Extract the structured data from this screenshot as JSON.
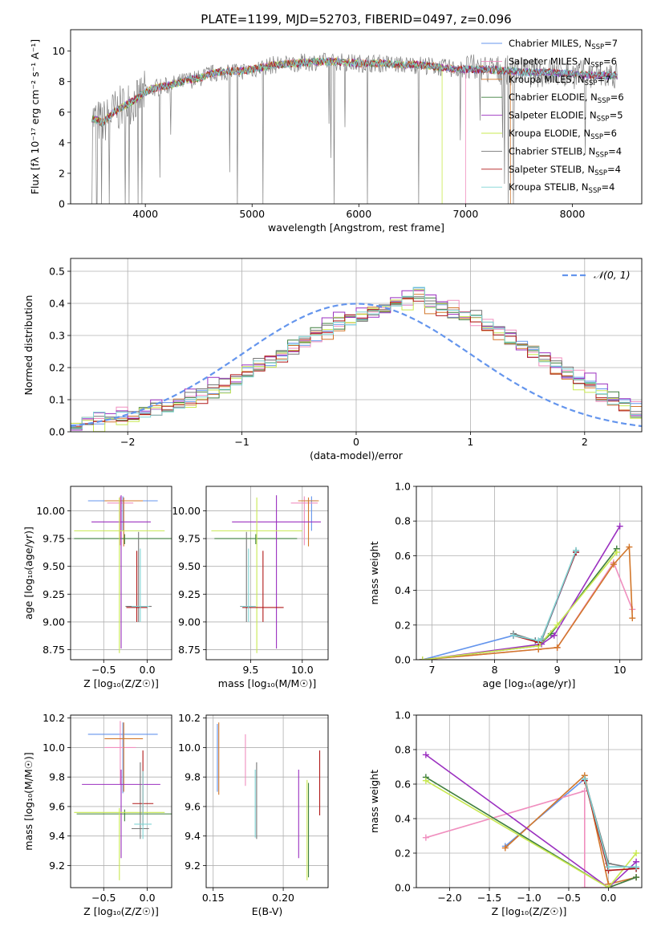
{
  "figure_title": "PLATE=1199, MJD=52703, FIBERID=0497, z=0.096",
  "colors": {
    "chabrier_miles": "#6495ed",
    "salpeter_miles": "#f08fbf",
    "kroupa_miles": "#d2772b",
    "chabrier_elodie": "#3f7f3f",
    "salpeter_elodie": "#9b30c0",
    "kroupa_elodie": "#c8e850",
    "chabrier_stelib": "#777777",
    "salpeter_stelib": "#b01818",
    "kroupa_stelib": "#7fd4d4",
    "data": "#808080",
    "normal": "#6495ed",
    "grid": "#b0b0b0"
  },
  "chart_data": [
    {
      "id": "spectrum",
      "type": "line",
      "title": "PLATE=1199, MJD=52703, FIBERID=0497, z=0.096",
      "xlabel": "wavelength [Angstrom, rest frame]",
      "ylabel": "Flux [fλ 10⁻¹⁷ erg cm⁻² s⁻¹ A⁻¹]",
      "xlim": [
        3300,
        8650
      ],
      "ylim": [
        0,
        11.4
      ],
      "xticks": [
        4000,
        5000,
        6000,
        7000,
        8000
      ],
      "yticks": [
        0,
        2,
        4,
        6,
        8,
        10
      ],
      "grid": false,
      "legend_position": "upper-right",
      "legend": [
        {
          "label": "Chabrier MILES, N",
          "sub": "SSP",
          "tail": "=7",
          "color": "#6495ed"
        },
        {
          "label": "Salpeter MILES, N",
          "sub": "SSP",
          "tail": "=6",
          "color": "#f08fbf"
        },
        {
          "label": "Kroupa MILES, N",
          "sub": "SSP",
          "tail": "=7",
          "color": "#d2772b"
        },
        {
          "label": "Chabrier ELODIE, N",
          "sub": "SSP",
          "tail": "=6",
          "color": "#3f7f3f"
        },
        {
          "label": "Salpeter ELODIE, N",
          "sub": "SSP",
          "tail": "=5",
          "color": "#9b30c0"
        },
        {
          "label": "Kroupa ELODIE, N",
          "sub": "SSP",
          "tail": "=6",
          "color": "#c8e850"
        },
        {
          "label": "Chabrier STELIB, N",
          "sub": "SSP",
          "tail": "=4",
          "color": "#777777"
        },
        {
          "label": "Salpeter STELIB, N",
          "sub": "SSP",
          "tail": "=4",
          "color": "#b01818"
        },
        {
          "label": "Kroupa STELIB, N",
          "sub": "SSP",
          "tail": "=4",
          "color": "#7fd4d4"
        }
      ],
      "continuum": [
        [
          3500,
          5.6
        ],
        [
          3600,
          5.3
        ],
        [
          3700,
          6.0
        ],
        [
          3800,
          6.4
        ],
        [
          3900,
          6.8
        ],
        [
          4000,
          7.3
        ],
        [
          4100,
          7.6
        ],
        [
          4200,
          7.7
        ],
        [
          4300,
          7.9
        ],
        [
          4400,
          8.1
        ],
        [
          4500,
          8.2
        ],
        [
          4600,
          8.5
        ],
        [
          4700,
          8.6
        ],
        [
          4800,
          8.7
        ],
        [
          4900,
          8.7
        ],
        [
          5000,
          8.8
        ],
        [
          5200,
          9.1
        ],
        [
          5400,
          9.2
        ],
        [
          5600,
          9.3
        ],
        [
          5800,
          9.3
        ],
        [
          6000,
          9.2
        ],
        [
          6200,
          9.2
        ],
        [
          6400,
          9.1
        ],
        [
          6600,
          9.1
        ],
        [
          6800,
          8.9
        ],
        [
          7000,
          8.8
        ],
        [
          7200,
          8.8
        ],
        [
          7400,
          8.7
        ],
        [
          7600,
          8.6
        ],
        [
          7800,
          8.6
        ],
        [
          8000,
          8.5
        ],
        [
          8200,
          8.4
        ],
        [
          8420,
          8.4
        ]
      ],
      "absorption_dips": [
        [
          3500,
          0
        ],
        [
          3545,
          0
        ],
        [
          3590,
          0
        ],
        [
          3660,
          0
        ],
        [
          3930,
          0
        ],
        [
          3968,
          0
        ],
        [
          4860,
          0
        ],
        [
          5100,
          0
        ],
        [
          5770,
          0
        ],
        [
          6080,
          0
        ],
        [
          6560,
          0
        ],
        [
          7400,
          0
        ],
        [
          7450,
          0
        ]
      ],
      "model_truncation": {
        "salpeter_miles_end": 7000,
        "kroupa_elodie_end": 6780,
        "kroupa_miles_end": 7420
      }
    },
    {
      "id": "residual-distribution",
      "type": "step",
      "xlabel": "(data-model)/error",
      "ylabel": "Normed distribution",
      "xlim": [
        -2.5,
        2.5
      ],
      "ylim": [
        0,
        0.54
      ],
      "xticks": [
        -2,
        -1,
        0,
        1,
        2
      ],
      "yticks": [
        0.0,
        0.1,
        0.2,
        0.3,
        0.4,
        0.5
      ],
      "grid": true,
      "legend": [
        {
          "label": "𝒩(0, 1)",
          "style": "dashed",
          "color": "#6495ed"
        }
      ],
      "bin_width": 0.1,
      "bin_start": -2.5,
      "histogram": [
        0.03,
        0.03,
        0.04,
        0.04,
        0.05,
        0.05,
        0.06,
        0.07,
        0.08,
        0.09,
        0.1,
        0.11,
        0.13,
        0.14,
        0.16,
        0.18,
        0.2,
        0.22,
        0.24,
        0.26,
        0.28,
        0.3,
        0.32,
        0.34,
        0.35,
        0.36,
        0.37,
        0.38,
        0.4,
        0.41,
        0.43,
        0.4,
        0.38,
        0.37,
        0.36,
        0.35,
        0.33,
        0.31,
        0.29,
        0.27,
        0.25,
        0.22,
        0.2,
        0.18,
        0.16,
        0.14,
        0.12,
        0.1,
        0.08,
        0.07,
        0.05
      ],
      "series_offsets": [
        0.0,
        0.015,
        -0.012,
        0.008,
        0.02,
        -0.018,
        0.01,
        -0.006,
        0.004
      ]
    },
    {
      "id": "age-vs-z",
      "type": "errorbar",
      "xlabel": "Z [log₁₀(Z/Z☉)]",
      "ylabel": "age  [log₁₀(age/yr)]",
      "xlim": [
        -0.88,
        0.28
      ],
      "ylim": [
        8.66,
        10.22
      ],
      "xticks": [
        -0.5,
        0.0
      ],
      "yticks": [
        8.75,
        9.0,
        9.25,
        9.5,
        9.75,
        10.0
      ],
      "grid": true,
      "points": [
        {
          "x": -0.28,
          "y": 10.09,
          "xerr": 0.4,
          "yerr": [
            0.27,
            0.04
          ],
          "color": "#6495ed"
        },
        {
          "x": -0.31,
          "y": 10.07,
          "xerr": 0.15,
          "yerr": [
            0.38,
            0.06
          ],
          "color": "#f08fbf"
        },
        {
          "x": -0.27,
          "y": 10.09,
          "xerr": 0.22,
          "yerr": [
            0.41,
            0.03
          ],
          "color": "#d2772b"
        },
        {
          "x": -0.26,
          "y": 9.75,
          "xerr": 0.58,
          "yerr": [
            0.05,
            0.04
          ],
          "color": "#3f7f3f"
        },
        {
          "x": -0.3,
          "y": 9.9,
          "xerr": 0.34,
          "yerr": [
            1.14,
            0.24
          ],
          "color": "#9b30c0"
        },
        {
          "x": -0.32,
          "y": 9.82,
          "xerr": 0.52,
          "yerr": [
            1.1,
            0.3
          ],
          "color": "#c8e850"
        },
        {
          "x": -0.1,
          "y": 9.14,
          "xerr": 0.15,
          "yerr": [
            0.14,
            0.67
          ],
          "color": "#777777"
        },
        {
          "x": -0.12,
          "y": 9.13,
          "xerr": 0.12,
          "yerr": [
            0.13,
            0.51
          ],
          "color": "#b01818"
        },
        {
          "x": -0.08,
          "y": 9.14,
          "xerr": 0.1,
          "yerr": [
            0.14,
            0.52
          ],
          "color": "#7fd4d4"
        }
      ]
    },
    {
      "id": "age-vs-mass",
      "type": "errorbar",
      "xlabel": "mass [log₁₀(M/M☉)]",
      "ylabel": "",
      "xlim": [
        9.07,
        10.25
      ],
      "ylim": [
        8.66,
        10.22
      ],
      "xticks": [
        9.5,
        10.0
      ],
      "yticks": [
        8.75,
        9.0,
        9.25,
        9.5,
        9.75,
        10.0
      ],
      "grid": true,
      "points": [
        {
          "x": 10.09,
          "y": 10.09,
          "xerr": 0.05,
          "yerr": [
            0.27,
            0.04
          ],
          "color": "#6495ed"
        },
        {
          "x": 10.02,
          "y": 10.07,
          "xerr": 0.13,
          "yerr": [
            0.38,
            0.06
          ],
          "color": "#f08fbf"
        },
        {
          "x": 10.06,
          "y": 10.09,
          "xerr": 0.1,
          "yerr": [
            0.41,
            0.03
          ],
          "color": "#d2772b"
        },
        {
          "x": 9.55,
          "y": 9.75,
          "xerr": 0.4,
          "yerr": [
            0.05,
            0.04
          ],
          "color": "#3f7f3f"
        },
        {
          "x": 9.75,
          "y": 9.9,
          "xerr": 0.43,
          "yerr": [
            1.14,
            0.24
          ],
          "color": "#9b30c0"
        },
        {
          "x": 9.56,
          "y": 9.82,
          "xerr": 0.44,
          "yerr": [
            1.1,
            0.3
          ],
          "color": "#c8e850"
        },
        {
          "x": 9.46,
          "y": 9.14,
          "xerr": 0.06,
          "yerr": [
            0.14,
            0.67
          ],
          "color": "#777777"
        },
        {
          "x": 9.62,
          "y": 9.13,
          "xerr": 0.2,
          "yerr": [
            0.13,
            0.51
          ],
          "color": "#b01818"
        },
        {
          "x": 9.48,
          "y": 9.14,
          "xerr": 0.07,
          "yerr": [
            0.14,
            0.52
          ],
          "color": "#7fd4d4"
        }
      ]
    },
    {
      "id": "mass-weight-vs-age",
      "type": "line",
      "xlabel": "age  [log₁₀(age/yr)]",
      "ylabel": "mass weight",
      "xlim": [
        6.75,
        10.35
      ],
      "ylim": [
        0,
        1.0
      ],
      "xticks": [
        7,
        8,
        9,
        10
      ],
      "yticks": [
        0.0,
        0.2,
        0.4,
        0.6,
        0.8,
        1.0
      ],
      "grid": true,
      "series": [
        {
          "color": "#6495ed",
          "x": [
            6.85,
            8.3,
            8.65,
            8.75,
            9.3
          ],
          "y": [
            0.0,
            0.14,
            0.11,
            0.11,
            0.62
          ]
        },
        {
          "color": "#f08fbf",
          "x": [
            6.85,
            8.7,
            9.0,
            9.9,
            10.2
          ],
          "y": [
            0.0,
            0.06,
            0.07,
            0.56,
            0.29
          ]
        },
        {
          "color": "#d2772b",
          "x": [
            6.85,
            8.7,
            9.0,
            9.9,
            10.15,
            10.2
          ],
          "y": [
            0.0,
            0.06,
            0.07,
            0.55,
            0.65,
            0.24
          ]
        },
        {
          "color": "#3f7f3f",
          "x": [
            6.85,
            8.7,
            8.9,
            9.95
          ],
          "y": [
            0.0,
            0.08,
            0.15,
            0.64
          ]
        },
        {
          "color": "#9b30c0",
          "x": [
            6.85,
            8.75,
            8.95,
            10.0
          ],
          "y": [
            0.0,
            0.09,
            0.14,
            0.77
          ]
        },
        {
          "color": "#c8e850",
          "x": [
            6.85,
            8.7,
            9.0,
            9.95
          ],
          "y": [
            0.0,
            0.08,
            0.2,
            0.62
          ]
        },
        {
          "color": "#777777",
          "x": [
            8.3,
            8.65,
            8.75,
            9.3
          ],
          "y": [
            0.15,
            0.11,
            0.11,
            0.63
          ]
        },
        {
          "color": "#b01818",
          "x": [
            8.3,
            8.7,
            8.75,
            9.3
          ],
          "y": [
            0.14,
            0.1,
            0.12,
            0.62
          ]
        },
        {
          "color": "#7fd4d4",
          "x": [
            8.3,
            8.7,
            8.75,
            9.3
          ],
          "y": [
            0.14,
            0.11,
            0.12,
            0.63
          ]
        }
      ]
    },
    {
      "id": "mass-vs-z",
      "type": "errorbar",
      "xlabel": "Z [log₁₀(Z/Z☉)]",
      "ylabel": "mass [log₁₀(M/M☉)]",
      "xlim": [
        -0.88,
        0.28
      ],
      "ylim": [
        9.05,
        10.22
      ],
      "xticks": [
        -0.5,
        0.0
      ],
      "yticks": [
        9.2,
        9.4,
        9.6,
        9.8,
        10.0,
        10.2
      ],
      "grid": true,
      "points": [
        {
          "x": -0.28,
          "y": 10.09,
          "xerr": 0.4,
          "yerr": [
            0.4,
            0.08
          ],
          "color": "#6495ed"
        },
        {
          "x": -0.31,
          "y": 10.0,
          "xerr": 0.18,
          "yerr": [
            0.25,
            0.18
          ],
          "color": "#f08fbf"
        },
        {
          "x": -0.27,
          "y": 10.06,
          "xerr": 0.22,
          "yerr": [
            0.36,
            0.11
          ],
          "color": "#d2772b"
        },
        {
          "x": -0.26,
          "y": 9.55,
          "xerr": 0.55,
          "yerr": [
            0.05,
            0.03
          ],
          "color": "#3f7f3f"
        },
        {
          "x": -0.3,
          "y": 9.75,
          "xerr": 0.45,
          "yerr": [
            0.5,
            0.1
          ],
          "color": "#9b30c0"
        },
        {
          "x": -0.32,
          "y": 9.56,
          "xerr": 0.52,
          "yerr": [
            0.46,
            0.03
          ],
          "color": "#c8e850"
        },
        {
          "x": -0.08,
          "y": 9.45,
          "xerr": 0.1,
          "yerr": [
            0.07,
            0.45
          ],
          "color": "#777777"
        },
        {
          "x": -0.05,
          "y": 9.62,
          "xerr": 0.12,
          "yerr": [
            0.15,
            0.36
          ],
          "color": "#b01818"
        },
        {
          "x": -0.05,
          "y": 9.48,
          "xerr": 0.1,
          "yerr": [
            0.1,
            0.36
          ],
          "color": "#7fd4d4"
        }
      ]
    },
    {
      "id": "mass-vs-ebv",
      "type": "errorbar",
      "xlabel": "E(B-V)",
      "ylabel": "",
      "xlim": [
        0.145,
        0.232
      ],
      "ylim": [
        9.05,
        10.22
      ],
      "xticks": [
        0.15,
        0.2
      ],
      "yticks": [
        9.2,
        9.4,
        9.6,
        9.8,
        10.0,
        10.2
      ],
      "grid": true,
      "points": [
        {
          "x": 0.153,
          "y": 9.93,
          "yerr": [
            0.23,
            0.23
          ],
          "color": "#6495ed"
        },
        {
          "x": 0.173,
          "y": 9.92,
          "yerr": [
            0.18,
            0.17
          ],
          "color": "#f08fbf"
        },
        {
          "x": 0.154,
          "y": 9.93,
          "yerr": [
            0.25,
            0.24
          ],
          "color": "#d2772b"
        },
        {
          "x": 0.181,
          "y": 9.65,
          "yerr": [
            0.27,
            0.25
          ],
          "color": "#777777"
        },
        {
          "x": 0.211,
          "y": 9.55,
          "yerr": [
            0.3,
            0.3
          ],
          "color": "#9b30c0"
        },
        {
          "x": 0.217,
          "y": 9.44,
          "yerr": [
            0.34,
            0.34
          ],
          "color": "#c8e850"
        },
        {
          "x": 0.226,
          "y": 9.76,
          "yerr": [
            0.22,
            0.22
          ],
          "color": "#b01818"
        },
        {
          "x": 0.18,
          "y": 9.62,
          "yerr": [
            0.23,
            0.23
          ],
          "color": "#7fd4d4"
        },
        {
          "x": 0.218,
          "y": 9.44,
          "yerr": [
            0.32,
            0.32
          ],
          "color": "#3f7f3f"
        }
      ]
    },
    {
      "id": "mass-weight-vs-z",
      "type": "line",
      "xlabel": "Z [log₁₀(Z/Z☉)]",
      "ylabel": "mass weight",
      "xlim": [
        -2.42,
        0.42
      ],
      "ylim": [
        0,
        1.0
      ],
      "xticks": [
        -2.0,
        -1.5,
        -1.0,
        -0.5,
        0.0
      ],
      "yticks": [
        0.0,
        0.2,
        0.4,
        0.6,
        0.8,
        1.0
      ],
      "grid": true,
      "series": [
        {
          "color": "#6495ed",
          "x": [
            -1.3,
            -0.3,
            0.0,
            0.35
          ],
          "y": [
            0.24,
            0.63,
            0.12,
            0.12
          ]
        },
        {
          "color": "#f08fbf",
          "x": [
            -2.3,
            -0.3,
            -0.3,
            0.0,
            0.35
          ],
          "y": [
            0.29,
            0.56,
            0.0,
            0.0,
            0.06
          ]
        },
        {
          "color": "#d2772b",
          "x": [
            -1.3,
            -0.3,
            0.0,
            0.35
          ],
          "y": [
            0.23,
            0.65,
            0.02,
            0.06
          ]
        },
        {
          "color": "#3f7f3f",
          "x": [
            -2.3,
            0.0,
            0.35
          ],
          "y": [
            0.64,
            0.0,
            0.06
          ]
        },
        {
          "color": "#9b30c0",
          "x": [
            -2.3,
            0.0,
            0.35
          ],
          "y": [
            0.77,
            0.0,
            0.15
          ]
        },
        {
          "color": "#c8e850",
          "x": [
            -2.3,
            0.0,
            0.35
          ],
          "y": [
            0.62,
            0.0,
            0.2
          ]
        },
        {
          "color": "#777777",
          "x": [
            -0.3,
            0.0,
            0.35
          ],
          "y": [
            0.63,
            0.14,
            0.11
          ]
        },
        {
          "color": "#b01818",
          "x": [
            -0.3,
            0.0,
            0.35
          ],
          "y": [
            0.62,
            0.1,
            0.11
          ]
        },
        {
          "color": "#7fd4d4",
          "x": [
            -0.3,
            0.0,
            0.35
          ],
          "y": [
            0.63,
            0.12,
            0.12
          ]
        }
      ]
    }
  ]
}
